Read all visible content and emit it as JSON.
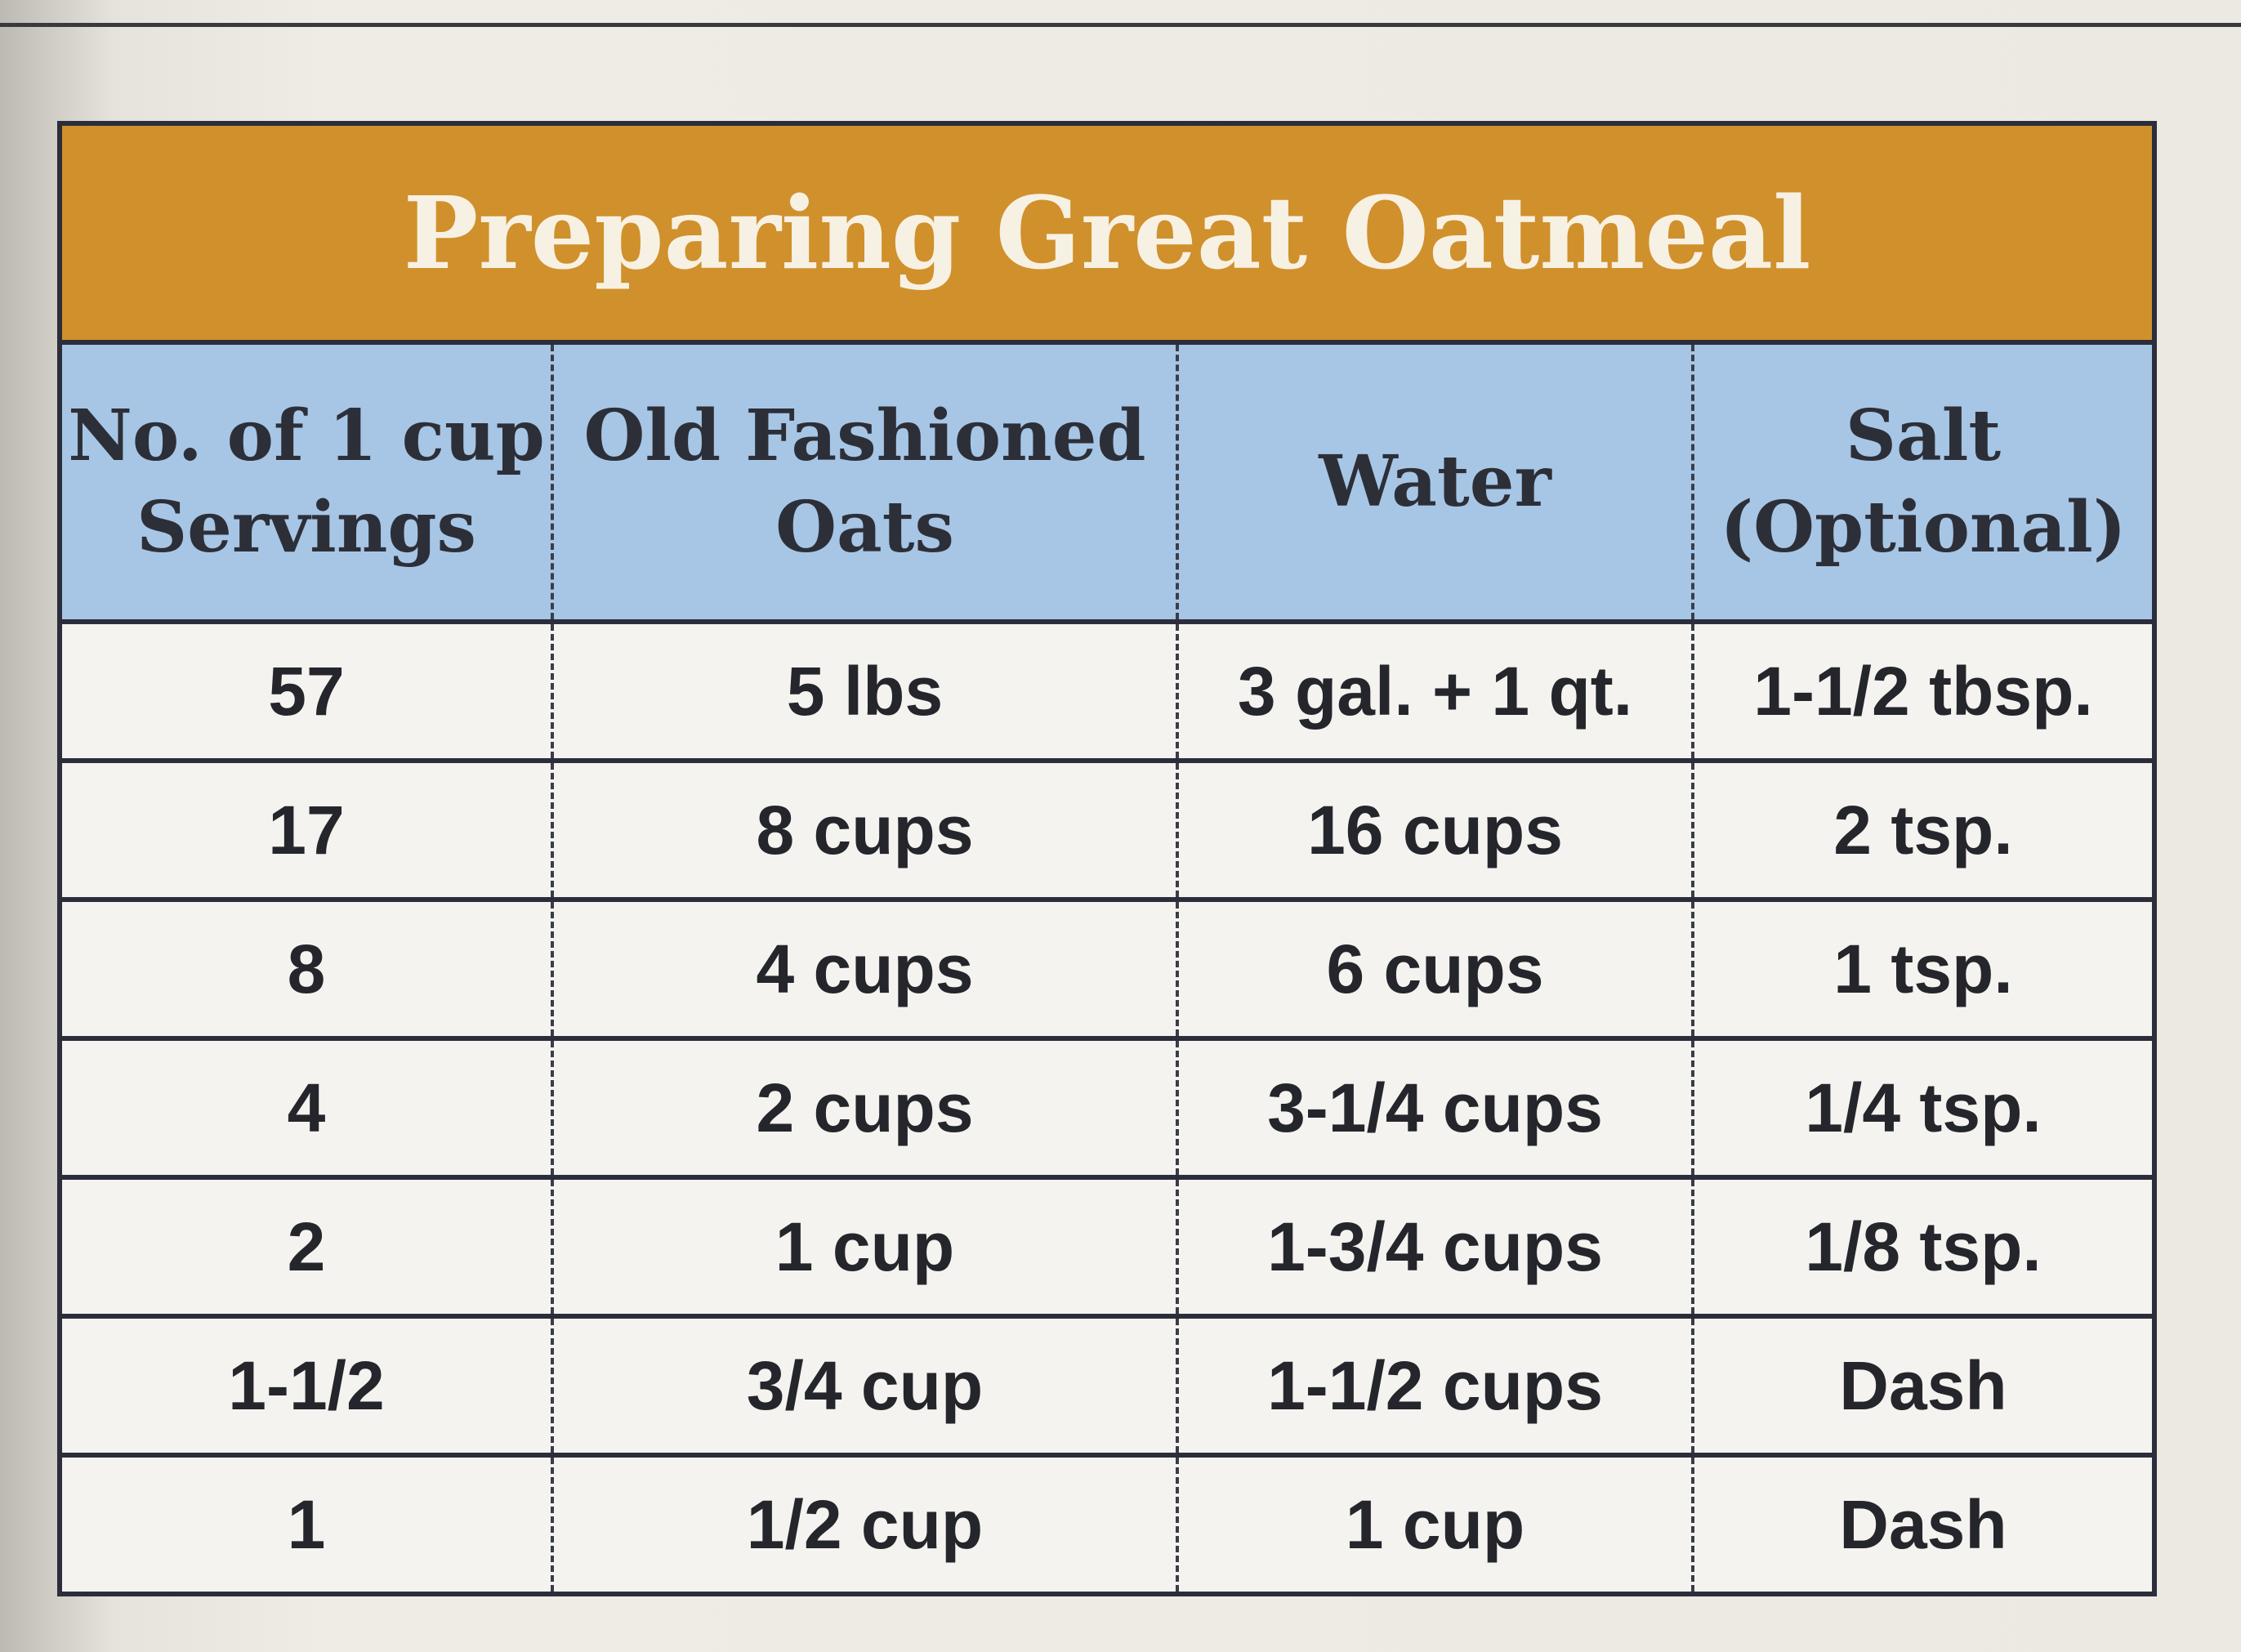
{
  "table": {
    "title": "Preparing Great Oatmeal",
    "headers": [
      [
        "No. of 1 cup",
        "Servings"
      ],
      [
        "Old Fashioned",
        "Oats"
      ],
      [
        "Water"
      ],
      [
        "Salt",
        "(Optional)"
      ]
    ],
    "rows": [
      [
        "57",
        "5 lbs",
        "3 gal. + 1 qt.",
        "1-1/2 tbsp."
      ],
      [
        "17",
        "8 cups",
        "16 cups",
        "2 tsp."
      ],
      [
        "8",
        "4 cups",
        "6 cups",
        "1 tsp."
      ],
      [
        "4",
        "2 cups",
        "3-1/4 cups",
        "1/4 tsp."
      ],
      [
        "2",
        "1 cup",
        "1-3/4 cups",
        "1/8 tsp."
      ],
      [
        "1-1/2",
        "3/4 cup",
        "1-1/2 cups",
        "Dash"
      ],
      [
        "1",
        "1/2 cup",
        "1 cup",
        "Dash"
      ]
    ]
  }
}
